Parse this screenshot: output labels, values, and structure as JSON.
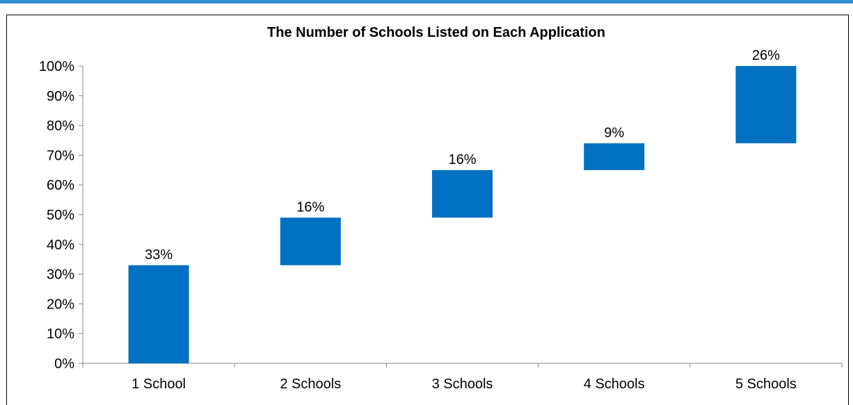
{
  "colors": {
    "bar": "#0070c0",
    "top_rule": "#2f8fd0",
    "axis": "#868686"
  },
  "chart_data": {
    "type": "bar",
    "subtype": "waterfall",
    "title": "The Number of Schools Listed on Each Application",
    "categories": [
      "1 School",
      "2 Schools",
      "3 Schools",
      "4 Schools",
      "5 Schools"
    ],
    "values": [
      33,
      16,
      16,
      9,
      26
    ],
    "bar_ranges": [
      [
        0,
        33
      ],
      [
        33,
        49
      ],
      [
        49,
        65
      ],
      [
        65,
        74
      ],
      [
        74,
        100
      ]
    ],
    "data_labels": [
      "33%",
      "16%",
      "16%",
      "9%",
      "26%"
    ],
    "ylim": [
      0,
      100
    ],
    "yticks": [
      0,
      10,
      20,
      30,
      40,
      50,
      60,
      70,
      80,
      90,
      100
    ],
    "ytick_labels": [
      "0%",
      "10%",
      "20%",
      "30%",
      "40%",
      "50%",
      "60%",
      "70%",
      "80%",
      "90%",
      "100%"
    ],
    "xlabel": "",
    "ylabel": "",
    "grid": false,
    "legend": "none"
  }
}
